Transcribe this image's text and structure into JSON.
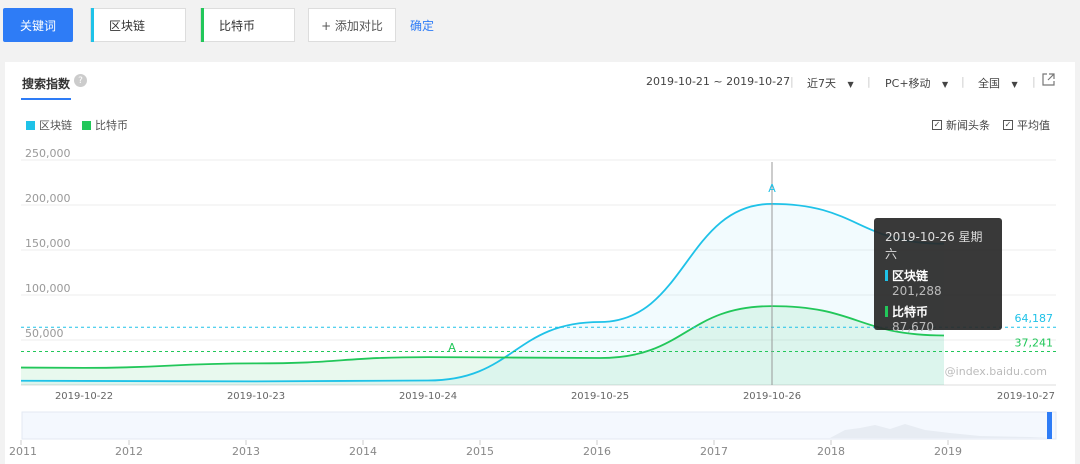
{
  "topbar": {
    "keyword_button": "关键词",
    "keywords": [
      {
        "label": "区块链",
        "color": "#1fc2e8"
      },
      {
        "label": "比特币",
        "color": "#22c75a"
      }
    ],
    "add_compare": "+ 添加对比",
    "confirm": "确定"
  },
  "panel": {
    "tab_title": "搜索指数",
    "help_icon": "?",
    "date_range": "2019-10-21 ~ 2019-10-27",
    "period": "近7天",
    "device": "PC+移动",
    "region": "全国",
    "export_icon": "external-link-icon",
    "checkbox_news": "新闻头条",
    "checkbox_avg": "平均值",
    "watermark": "@index.baidu.com"
  },
  "chart_data": {
    "type": "line",
    "x": [
      "2019-10-21",
      "2019-10-22",
      "2019-10-23",
      "2019-10-24",
      "2019-10-25",
      "2019-10-26",
      "2019-10-27"
    ],
    "x_tick_labels": [
      "2019-10-22",
      "2019-10-23",
      "2019-10-24",
      "2019-10-25",
      "2019-10-26",
      "2019-10-27"
    ],
    "y_tick_labels": [
      "250,000",
      "200,000",
      "150,000",
      "100,000",
      "50,000"
    ],
    "ylim": [
      0,
      250000
    ],
    "series": [
      {
        "name": "区块链",
        "color": "#1fc2e8",
        "values": [
          5000,
          4500,
          4000,
          5000,
          70000,
          201288,
          157000
        ],
        "average": 64187,
        "average_label": "64,187"
      },
      {
        "name": "比特币",
        "color": "#22c75a",
        "values": [
          20000,
          19000,
          24000,
          31000,
          30000,
          87670,
          55000
        ],
        "average": 37241,
        "average_label": "37,241"
      }
    ],
    "annotation_marker": "A",
    "tooltip": {
      "date": "2019-10-26 星期六",
      "rows": [
        {
          "name": "区块链",
          "value": "201,288",
          "color": "#1fc2e8"
        },
        {
          "name": "比特币",
          "value": "87,670",
          "color": "#22c75a"
        }
      ]
    }
  },
  "overview": {
    "years": [
      "2011",
      "2012",
      "2013",
      "2014",
      "2015",
      "2016",
      "2017",
      "2018",
      "2019"
    ]
  }
}
